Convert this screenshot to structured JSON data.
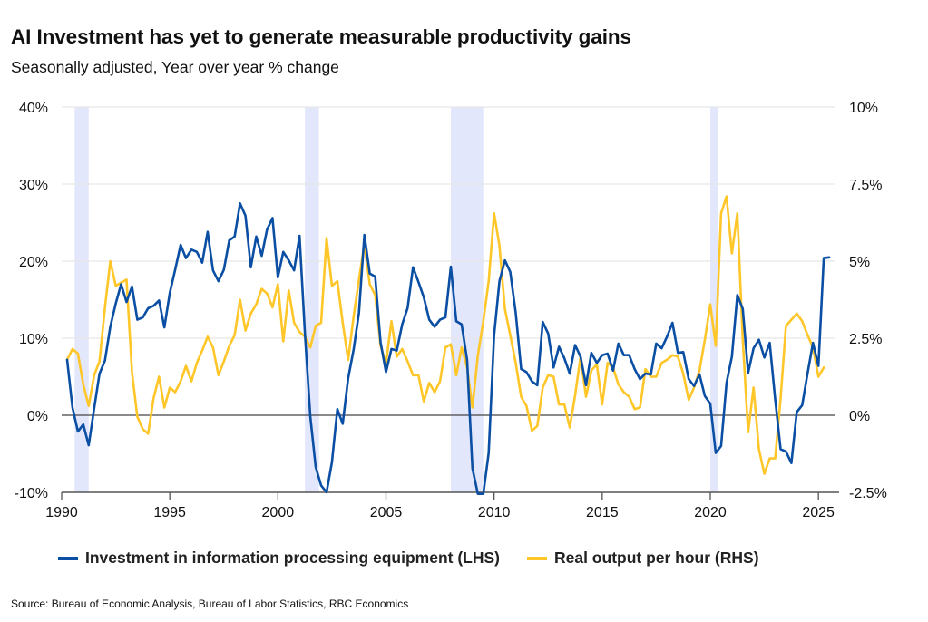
{
  "chart_data": {
    "type": "line",
    "title": "AI Investment has yet to generate measurable productivity gains",
    "subtitle": "Seasonally adjusted, Year over year % change",
    "source": "Source: Bureau of Economic Analysis, Bureau of Labor Statistics, RBC Economics",
    "xlabel": "",
    "ylabel_left": "",
    "ylabel_right": "",
    "xlim": [
      1990,
      2026
    ],
    "x_ticks": [
      1990,
      1995,
      2000,
      2005,
      2010,
      2015,
      2020,
      2025
    ],
    "x_tick_labels": [
      "1990",
      "1995",
      "2000",
      "2005",
      "2010",
      "2015",
      "2020",
      "2025"
    ],
    "ylim_left": [
      -10,
      40
    ],
    "y_ticks_left": [
      -10,
      0,
      10,
      20,
      30,
      40
    ],
    "y_tick_labels_left": [
      "-10%",
      "0%",
      "10%",
      "20%",
      "30%",
      "40%"
    ],
    "ylim_right": [
      -2.5,
      10
    ],
    "y_ticks_right": [
      -2.5,
      0,
      2.5,
      5,
      7.5,
      10
    ],
    "y_tick_labels_right": [
      "-2.5%",
      "0%",
      "2.5%",
      "5%",
      "7.5%",
      "10%"
    ],
    "grid": true,
    "legend_position": "bottom",
    "recessions": [
      [
        1990.6,
        1991.25
      ],
      [
        2001.25,
        2001.9
      ],
      [
        2008.0,
        2009.5
      ],
      [
        2020.0,
        2020.35
      ]
    ],
    "colors": {
      "investment": "#0a4fa3",
      "productivity": "#ffc629",
      "recession": "#e3e7fb",
      "grid": "#e6e6e6",
      "axis": "#555555"
    },
    "series": [
      {
        "name": "Investment in information processing equipment (LHS)",
        "axis": "left",
        "x_start": 1990.25,
        "x_step": 0.25,
        "values": [
          7.2,
          1.0,
          -2.1,
          -1.2,
          -3.9,
          0.9,
          5.4,
          7.1,
          11.5,
          14.5,
          17.0,
          14.7,
          16.7,
          12.4,
          12.7,
          13.9,
          14.2,
          14.9,
          11.4,
          15.9,
          18.9,
          22.1,
          20.4,
          21.5,
          21.2,
          19.8,
          23.8,
          18.8,
          17.4,
          18.9,
          22.7,
          23.2,
          27.5,
          25.9,
          19.2,
          23.2,
          20.7,
          24.1,
          25.6,
          17.9,
          21.2,
          20.1,
          18.8,
          23.3,
          10.7,
          -0.2,
          -6.7,
          -9.1,
          -10.0,
          -6.1,
          0.8,
          -1.1,
          4.8,
          8.5,
          13.3,
          23.4,
          18.4,
          18.0,
          9.5,
          5.6,
          8.6,
          8.4,
          11.8,
          13.9,
          19.2,
          17.3,
          15.3,
          12.4,
          11.5,
          12.4,
          12.7,
          19.3,
          12.2,
          11.8,
          7.2,
          -6.9,
          -10.2,
          -10.2,
          -4.9,
          10.4,
          17.4,
          20.1,
          18.6,
          13.3,
          6.0,
          5.6,
          4.4,
          3.9,
          12.1,
          10.6,
          6.2,
          8.9,
          7.4,
          5.4,
          9.1,
          7.6,
          3.9,
          8.1,
          6.8,
          7.8,
          8.0,
          5.8,
          9.3,
          7.8,
          7.8,
          6.0,
          4.7,
          5.4,
          5.3,
          9.3,
          8.7,
          10.2,
          12.0,
          8.1,
          8.2,
          4.7,
          3.8,
          5.3,
          2.5,
          1.5,
          -4.9,
          -4.0,
          4.2,
          7.6,
          15.6,
          13.8,
          5.5,
          8.7,
          9.8,
          7.5,
          9.4,
          2.1,
          -4.4,
          -4.7,
          -6.2,
          0.4,
          1.3,
          5.5,
          9.4,
          6.4,
          20.4,
          20.5
        ]
      },
      {
        "name": "Real output per hour (RHS)",
        "axis": "right",
        "x_start": 1990.25,
        "x_step": 0.25,
        "values": [
          1.8,
          2.15,
          2.0,
          1.0,
          0.3,
          1.3,
          1.75,
          3.5,
          5.0,
          4.2,
          4.3,
          4.4,
          1.4,
          -0.05,
          -0.45,
          -0.6,
          0.55,
          1.25,
          0.25,
          0.9,
          0.75,
          1.1,
          1.6,
          1.1,
          1.7,
          2.1,
          2.55,
          2.2,
          1.3,
          1.75,
          2.25,
          2.6,
          3.75,
          2.75,
          3.3,
          3.6,
          4.1,
          3.95,
          3.5,
          4.25,
          2.4,
          4.05,
          3.0,
          2.7,
          2.55,
          2.2,
          2.9,
          3.0,
          5.75,
          4.2,
          4.35,
          3.0,
          1.8,
          3.2,
          4.4,
          5.55,
          4.25,
          3.9,
          2.25,
          1.7,
          3.05,
          1.9,
          2.15,
          1.75,
          1.3,
          1.3,
          0.45,
          1.05,
          0.75,
          1.1,
          2.2,
          2.3,
          1.3,
          2.2,
          1.55,
          0.25,
          1.95,
          3.05,
          4.35,
          6.55,
          5.5,
          3.45,
          2.6,
          1.7,
          0.6,
          0.3,
          -0.5,
          -0.35,
          0.9,
          1.3,
          1.25,
          0.35,
          0.35,
          -0.4,
          0.65,
          1.9,
          0.6,
          1.45,
          1.65,
          0.35,
          1.7,
          1.55,
          1.0,
          0.75,
          0.6,
          0.2,
          0.25,
          1.5,
          1.25,
          1.25,
          1.7,
          1.8,
          1.95,
          1.9,
          1.35,
          0.5,
          0.9,
          1.45,
          2.45,
          3.6,
          2.25,
          6.55,
          7.1,
          5.25,
          6.55,
          2.45,
          -0.55,
          0.9,
          -1.1,
          -1.9,
          -1.4,
          -1.4,
          0.55,
          2.9,
          3.1,
          3.3,
          3.05,
          2.6,
          2.2,
          1.25,
          1.55
        ]
      }
    ]
  },
  "legend": {
    "items": [
      {
        "label": "Investment in information processing equipment (LHS)",
        "color": "#0a4fa3"
      },
      {
        "label": "Real output per hour (RHS)",
        "color": "#ffc629"
      }
    ]
  }
}
